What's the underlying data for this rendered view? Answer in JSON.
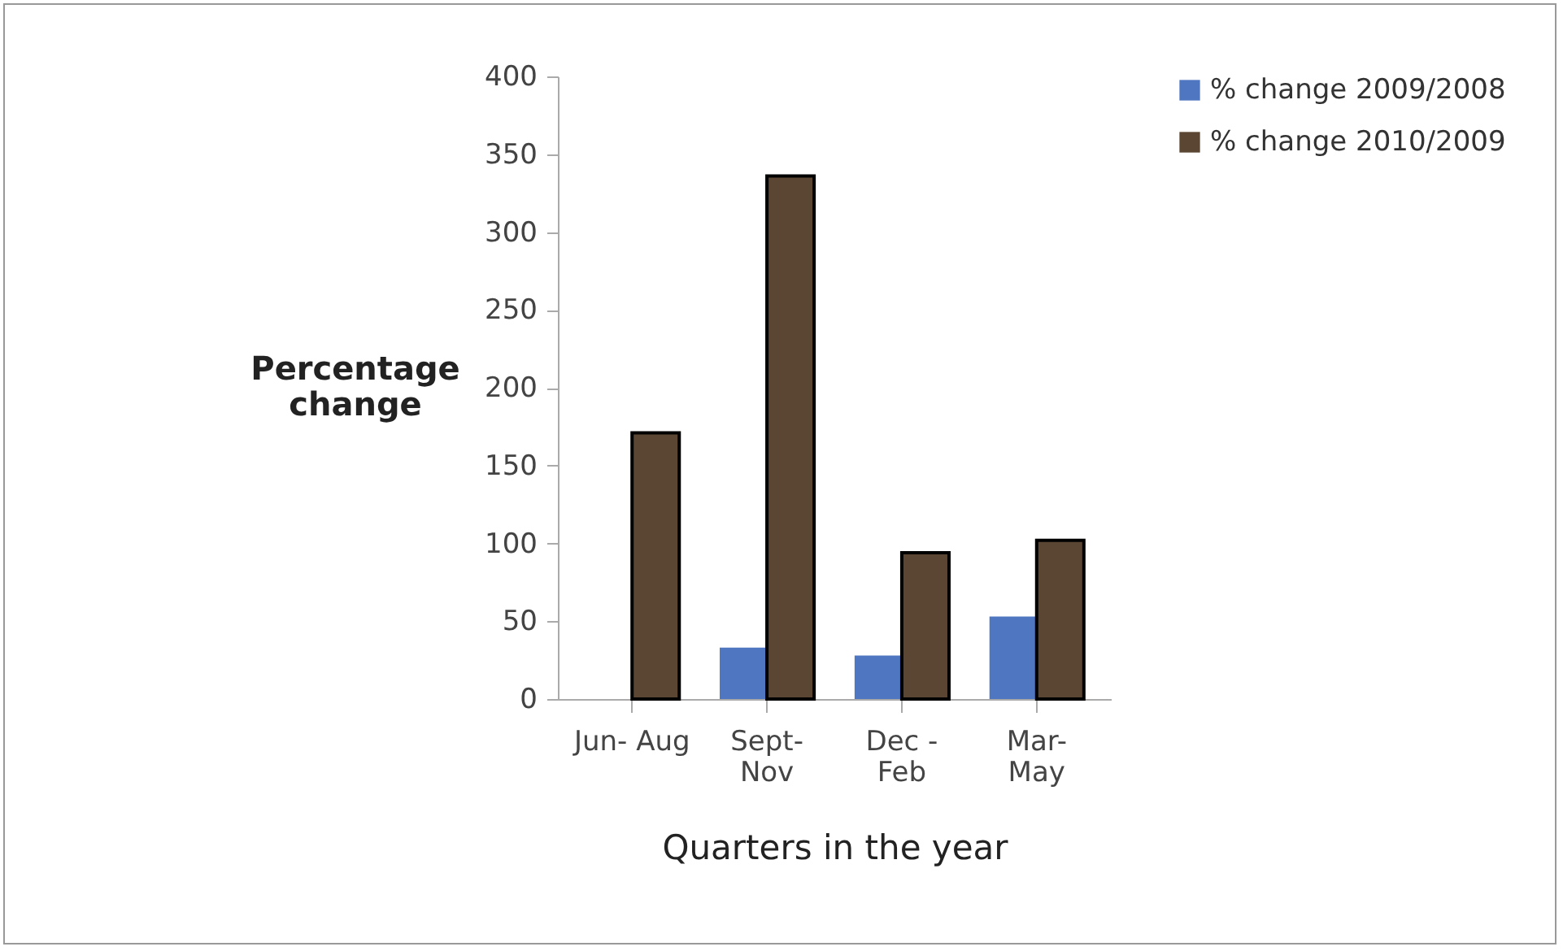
{
  "chart_data": {
    "type": "bar",
    "xlabel": "Quarters in the year",
    "ylabel": "Percentage change",
    "categories": [
      "Jun- Aug",
      "Sept-\nNov",
      "Dec -\nFeb",
      "Mar-\nMay"
    ],
    "series": [
      {
        "name": "% change  2009/2008",
        "color": "#4f76c0",
        "values": [
          null,
          33,
          28,
          53
        ]
      },
      {
        "name": "% change  2010/2009",
        "color": "#5a4632",
        "values": [
          171,
          336,
          94,
          102
        ]
      }
    ],
    "ylim": [
      0,
      400
    ],
    "yticks": [
      0,
      50,
      100,
      150,
      200,
      250,
      300,
      350,
      400
    ],
    "grid": false,
    "legend": "right"
  }
}
